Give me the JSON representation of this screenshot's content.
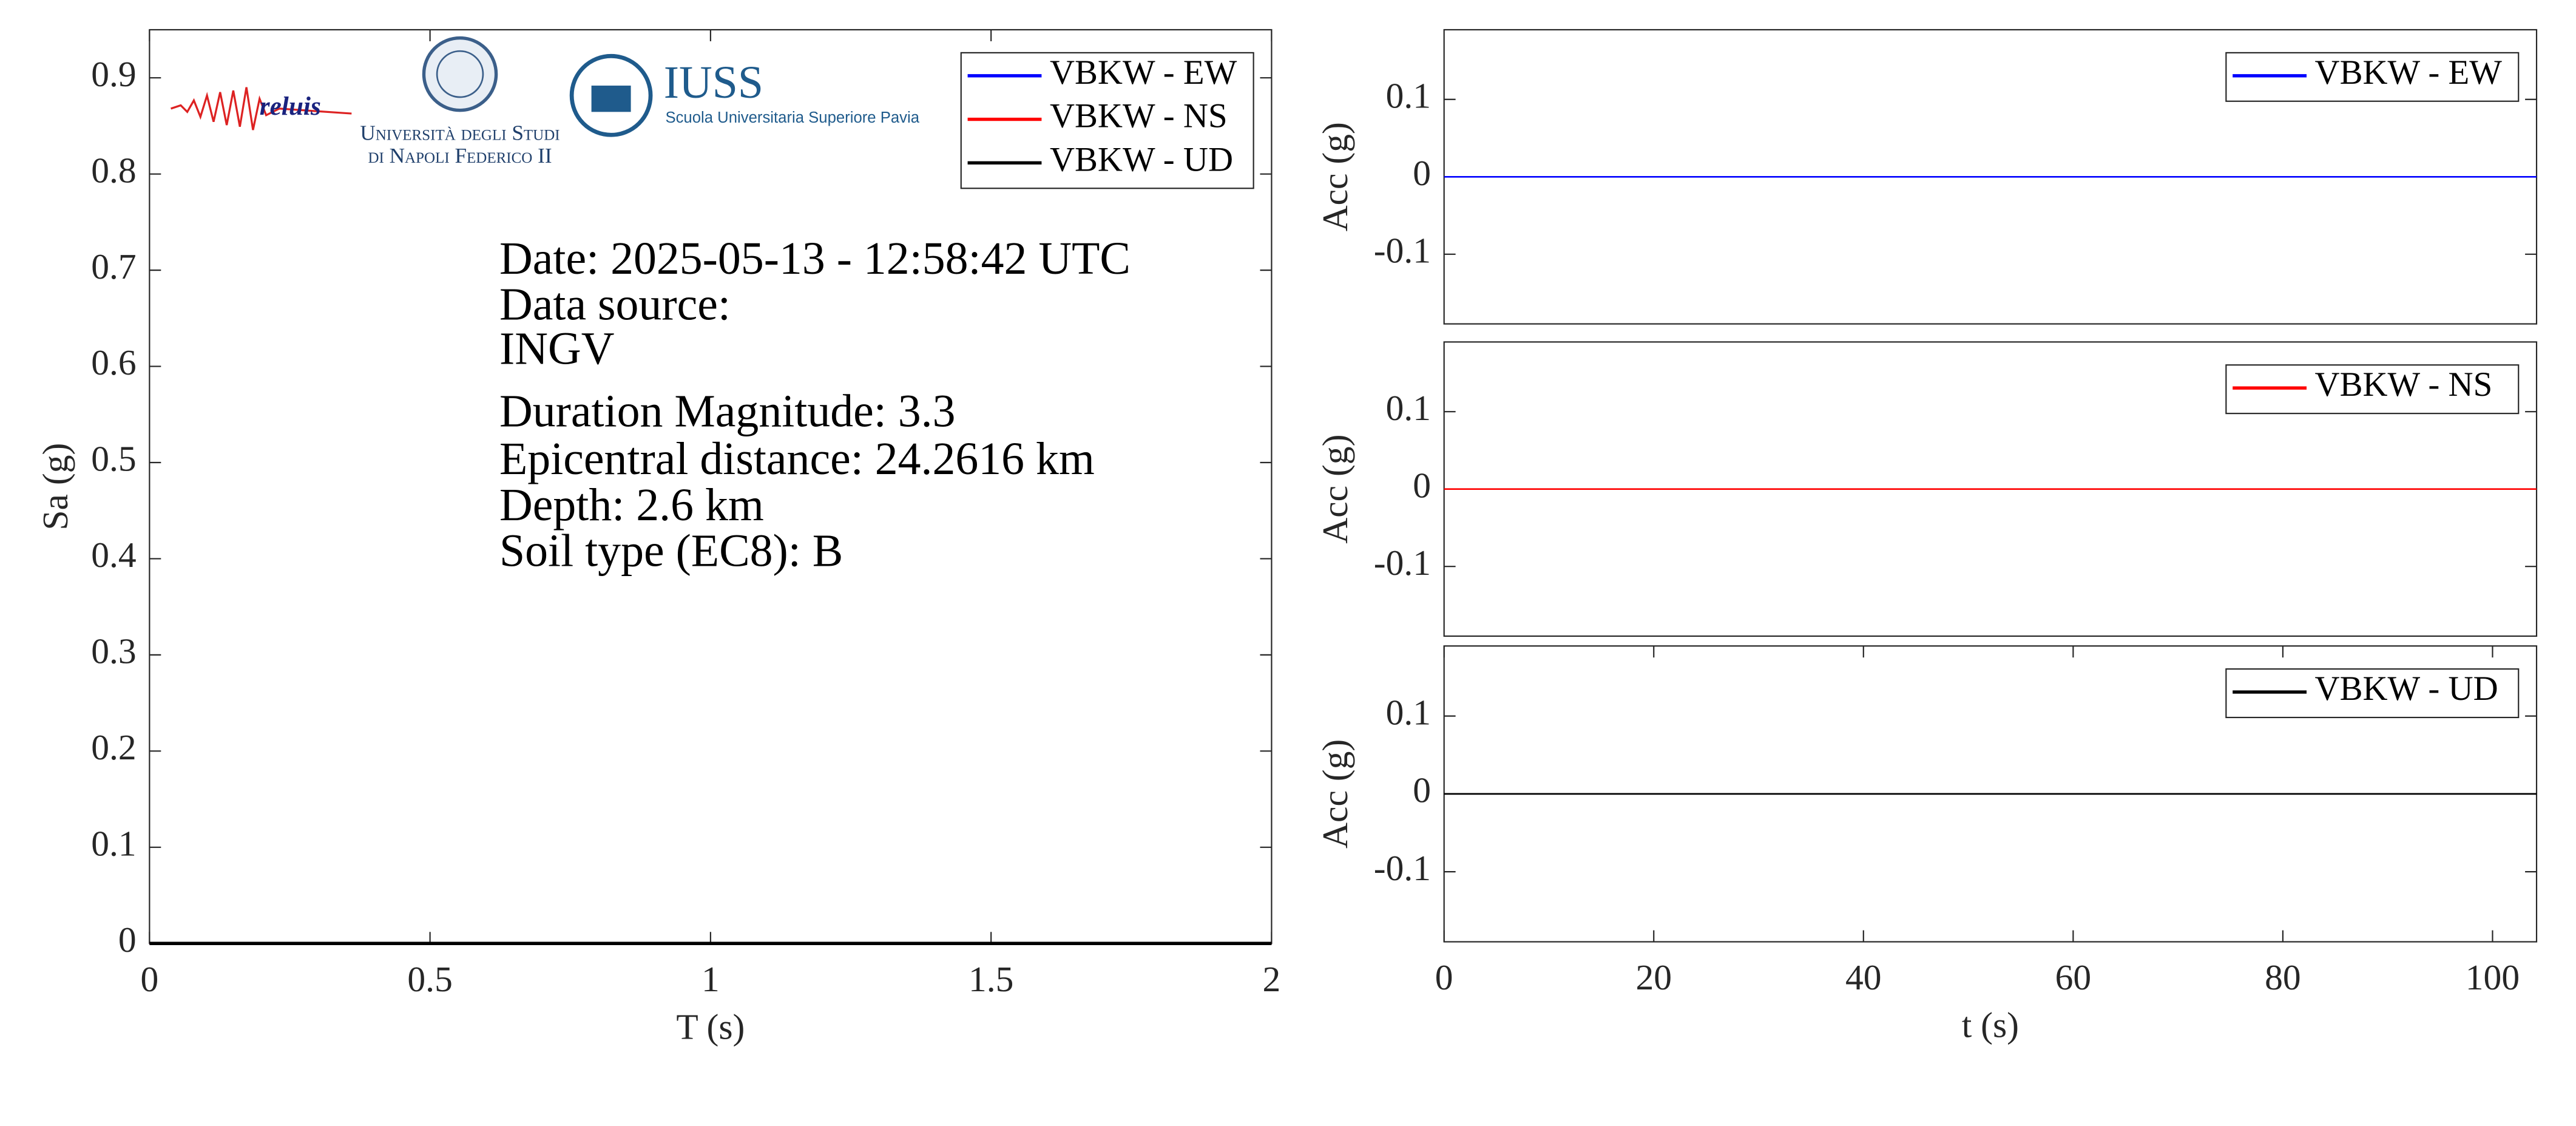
{
  "chart_data": [
    {
      "type": "line",
      "xlabel": "T (s)",
      "ylabel": "Sa (g)",
      "xlim": [
        0,
        2
      ],
      "xticks": [
        0,
        0.5,
        1,
        1.5,
        2
      ],
      "ylim": [
        0,
        0.95
      ],
      "yticks": [
        0,
        0.1,
        0.2,
        0.3,
        0.4,
        0.5,
        0.6,
        0.7,
        0.8,
        0.9
      ],
      "x": [
        0,
        0.5,
        1,
        1.5,
        2
      ],
      "series": [
        {
          "name": "VBKW - EW",
          "color": "#0000ff",
          "values": [
            0,
            0,
            0,
            0,
            0
          ]
        },
        {
          "name": "VBKW - NS",
          "color": "#ff0000",
          "values": [
            0,
            0,
            0,
            0,
            0
          ]
        },
        {
          "name": "VBKW - UD",
          "color": "#000000",
          "values": [
            0,
            0,
            0,
            0,
            0
          ]
        }
      ],
      "legend": "upper right",
      "annotations": [
        "Date: 2025-05-13 - 12:58:42 UTC",
        "Data source:",
        "INGV",
        "Duration Magnitude: 3.3",
        "Epicentral distance: 24.2616 km",
        "Depth: 2.6 km",
        "Soil type (EC8): B"
      ],
      "logo_texts": [
        "reluis",
        "Università degli Studi",
        "di Napoli Federico II",
        "IUSS",
        "Scuola Universitaria Superiore Pavia"
      ]
    },
    {
      "type": "line",
      "ylabel": "Acc (g)",
      "xlim": [
        0,
        104.2
      ],
      "ylim": [
        -0.19,
        0.19
      ],
      "yticks": [
        -0.1,
        0,
        0.1
      ],
      "x": [
        0,
        104.2
      ],
      "series": [
        {
          "name": "VBKW - EW",
          "color": "#0000ff",
          "values": [
            0,
            0
          ]
        }
      ],
      "legend": "upper right"
    },
    {
      "type": "line",
      "ylabel": "Acc (g)",
      "xlim": [
        0,
        104.2
      ],
      "ylim": [
        -0.19,
        0.19
      ],
      "yticks": [
        -0.1,
        0,
        0.1
      ],
      "x": [
        0,
        104.2
      ],
      "series": [
        {
          "name": "VBKW - NS",
          "color": "#ff0000",
          "values": [
            0,
            0
          ]
        }
      ],
      "legend": "upper right"
    },
    {
      "type": "line",
      "xlabel": "t (s)",
      "ylabel": "Acc (g)",
      "xlim": [
        0,
        104.2
      ],
      "xticks": [
        0,
        20,
        40,
        60,
        80,
        100
      ],
      "ylim": [
        -0.19,
        0.19
      ],
      "yticks": [
        -0.1,
        0,
        0.1
      ],
      "x": [
        0,
        104.2
      ],
      "series": [
        {
          "name": "VBKW - UD",
          "color": "#000000",
          "values": [
            0,
            0
          ]
        }
      ],
      "legend": "upper right"
    }
  ]
}
